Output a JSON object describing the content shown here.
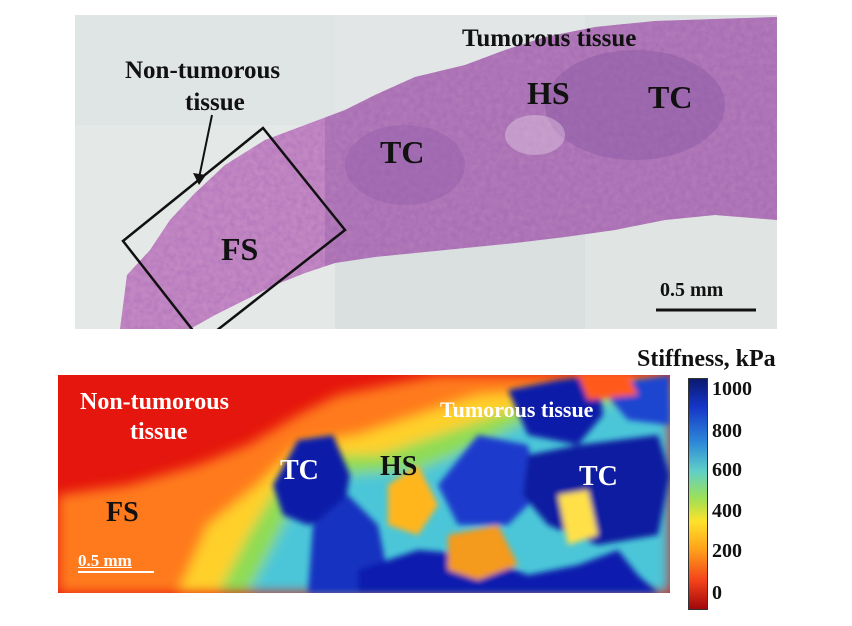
{
  "histology": {
    "tumorous_label": "Tumorous tissue",
    "non_tumorous_label_line1": "Non-tumorous",
    "non_tumorous_label_line2": "tissue",
    "region_hs": "HS",
    "region_tc_1": "TC",
    "region_tc_2": "TC",
    "region_fs": "FS",
    "scale_bar": "0.5 mm"
  },
  "stiffness_map": {
    "non_tumorous_label_line1": "Non-tumorous",
    "non_tumorous_label_line2": "tissue",
    "tumorous_label": "Tumorous tissue",
    "region_tc_1": "TC",
    "region_hs": "HS",
    "region_tc_2": "TC",
    "region_fs": "FS",
    "scale_bar": "0.5 mm"
  },
  "colorbar": {
    "title": "Stiffness, kPa",
    "ticks": [
      "1000",
      "800",
      "600",
      "400",
      "200",
      "0"
    ]
  }
}
